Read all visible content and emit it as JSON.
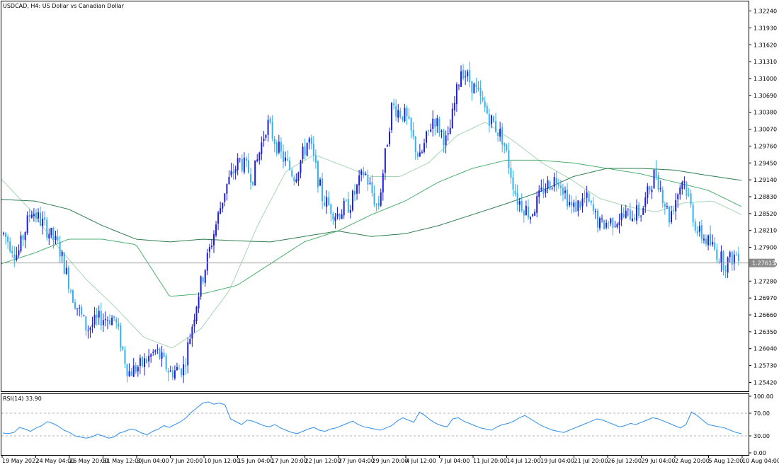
{
  "chart_data": {
    "type": "candlestick",
    "title": "USDCAD, H4:  US Dollar vs Canadian Dollar",
    "symbol": "USDCAD",
    "timeframe": "H4",
    "description": "US Dollar vs Canadian Dollar",
    "current_price": "1.27613",
    "ylim": [
      1.2527,
      1.3239
    ],
    "price_ticks": [
      "1.32240",
      "1.31930",
      "1.31620",
      "1.31310",
      "1.31000",
      "1.30690",
      "1.30380",
      "1.30070",
      "1.29760",
      "1.29450",
      "1.29140",
      "1.28830",
      "1.28520",
      "1.28210",
      "1.27900",
      "1.27590",
      "1.27280",
      "1.26970",
      "1.26660",
      "1.26350",
      "1.26040",
      "1.25730",
      "1.25420"
    ],
    "time_labels": [
      "19 May 2022",
      "24 May 04:00",
      "26 May 20:00",
      "31 May 12:00",
      "3 Jun 04:00",
      "7 Jun 20:00",
      "10 Jun 12:00",
      "15 Jun 04:00",
      "17 Jun 20:00",
      "22 Jun 12:00",
      "27 Jun 04:00",
      "29 Jun 20:00",
      "4 Jul 12:00",
      "7 Jul 04:00",
      "11 Jul 20:00",
      "14 Jul 12:00",
      "19 Jul 04:00",
      "21 Jul 20:00",
      "26 Jul 12:00",
      "29 Jul 04:00",
      "2 Aug 20:00",
      "5 Aug 12:00",
      "10 Aug 04:00"
    ],
    "price_path": [
      1.2815,
      1.2775,
      1.286,
      1.2828,
      1.279,
      1.27,
      1.264,
      1.266,
      1.266,
      1.256,
      1.2575,
      1.26,
      1.256,
      1.257,
      1.27,
      1.28,
      1.29,
      1.295,
      1.292,
      1.302,
      1.296,
      1.292,
      1.299,
      1.288,
      1.285,
      1.287,
      1.293,
      1.286,
      1.305,
      1.303,
      1.295,
      1.303,
      1.298,
      1.312,
      1.308,
      1.303,
      1.299,
      1.288,
      1.285,
      1.29,
      1.292,
      1.286,
      1.288,
      1.283,
      1.284,
      1.285,
      1.2855,
      1.293,
      1.2845,
      1.292,
      1.282,
      1.2795,
      1.276,
      1.278
    ],
    "moving_averages": [
      {
        "path": [
          1.2915,
          1.286,
          1.279,
          1.273,
          1.268,
          1.2625,
          1.2605,
          1.264,
          1.271,
          1.283,
          1.293,
          1.296,
          1.294,
          1.292,
          1.292,
          1.2945,
          1.2995,
          1.302,
          1.2985,
          1.2945,
          1.2915,
          1.288,
          1.2865,
          1.2855,
          1.2872,
          1.2875,
          1.285
        ],
        "color": "#a5d6b4"
      },
      {
        "path": [
          1.276,
          1.278,
          1.2805,
          1.2805,
          1.2795,
          1.27,
          1.2705,
          1.272,
          1.276,
          1.28,
          1.282,
          1.285,
          1.2875,
          1.291,
          1.2935,
          1.295,
          1.295,
          1.2945,
          1.2935,
          1.2925,
          1.291,
          1.2895,
          1.2865
        ],
        "color": "#4caf6e"
      },
      {
        "path": [
          1.2878,
          1.2875,
          1.286,
          1.283,
          1.2805,
          1.28,
          1.2805,
          1.2802,
          1.28,
          1.281,
          1.282,
          1.281,
          1.2815,
          1.283,
          1.285,
          1.287,
          1.2892,
          1.292,
          1.2935,
          1.2935,
          1.2932,
          1.2922,
          1.2913
        ],
        "color": "#2e7d4f"
      }
    ],
    "rsi": {
      "label": "RSI(14) 33.90",
      "period": 14,
      "value": 33.9,
      "ticks": [
        "100.00",
        "70.00",
        "30.00",
        "0.00"
      ],
      "levels": [
        70,
        30
      ],
      "path": [
        35,
        34,
        36,
        45,
        42,
        38,
        44,
        48,
        55,
        52,
        47,
        40,
        36,
        30,
        28,
        26,
        28,
        33,
        30,
        26,
        28,
        35,
        38,
        42,
        40,
        35,
        32,
        38,
        42,
        48,
        45,
        50,
        55,
        62,
        72,
        80,
        88,
        90,
        86,
        88,
        85,
        60,
        55,
        50,
        58,
        56,
        52,
        48,
        46,
        50,
        44,
        40,
        36,
        34,
        38,
        42,
        45,
        40,
        38,
        42,
        44,
        48,
        52,
        56,
        50,
        46,
        44,
        42,
        40,
        44,
        48,
        56,
        62,
        58,
        54,
        72,
        66,
        58,
        52,
        48,
        46,
        60,
        62,
        56,
        52,
        48,
        44,
        42,
        40,
        46,
        50,
        52,
        56,
        62,
        66,
        60,
        54,
        48,
        44,
        40,
        38,
        36,
        40,
        44,
        48,
        52,
        56,
        60,
        58,
        54,
        50,
        46,
        48,
        52,
        50,
        54,
        58,
        62,
        60,
        56,
        52,
        48,
        44,
        50,
        72,
        66,
        58,
        50,
        48,
        46,
        44,
        40,
        36,
        33.9
      ]
    }
  }
}
